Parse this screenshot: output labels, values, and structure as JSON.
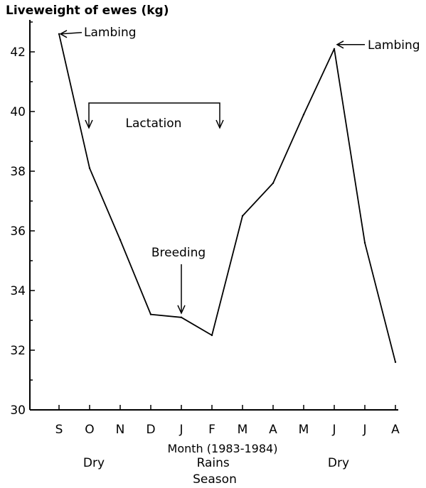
{
  "chart_data": {
    "type": "line",
    "ylabel": "Liveweight of ewes (kg)",
    "xlabel": "Month (1983-1984)",
    "ylim": [
      30,
      43
    ],
    "yticks": [
      30,
      32,
      34,
      36,
      38,
      40,
      42
    ],
    "categories": [
      "S",
      "O",
      "N",
      "D",
      "J",
      "F",
      "M",
      "A",
      "M",
      "J",
      "J",
      "A"
    ],
    "series": [
      {
        "values": [
          42.6,
          38.1,
          35.7,
          33.2,
          33.1,
          32.5,
          36.5,
          37.6,
          39.9,
          42.1,
          35.6,
          31.6
        ]
      }
    ],
    "grid": false,
    "annotations": {
      "lambing_1": "Lambing",
      "lambing_2": "Lambing",
      "lactation": "Lactation",
      "breeding": "Breeding"
    },
    "season": {
      "title": "Season",
      "labels": [
        {
          "text": "Dry",
          "at": 1
        },
        {
          "text": "Rains",
          "at": 4.9
        },
        {
          "text": "Dry",
          "at": 9
        }
      ]
    }
  }
}
